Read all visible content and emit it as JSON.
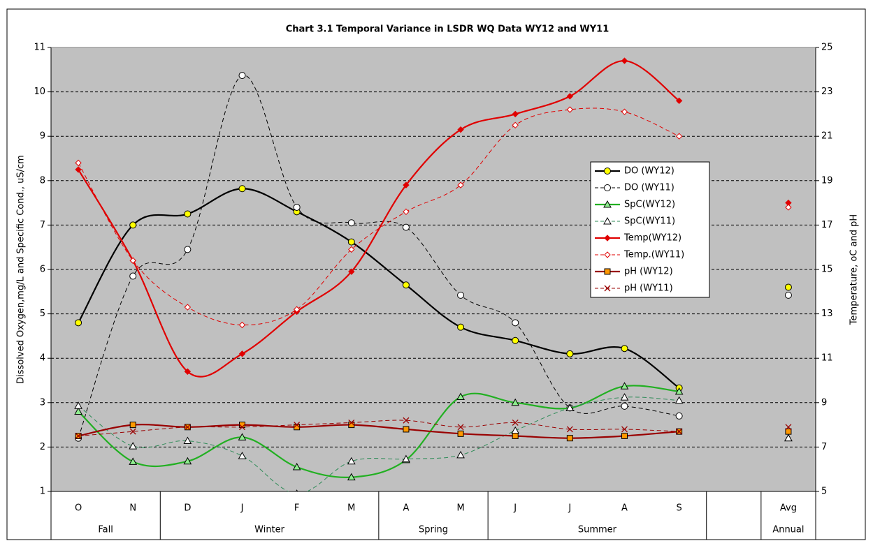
{
  "chart_data": {
    "type": "line",
    "title": "Chart 3.1  Temporal Variance in LSDR WQ Data WY12 and WY11",
    "y_label": "Dissolved Oxygen,mg/L and Specific Cond., uS/cm",
    "y2_label": "Temperature, oC and pH",
    "categories": [
      "O",
      "N",
      "D",
      "J",
      "F",
      "M",
      "A",
      "M",
      "J",
      "J",
      "A",
      "S",
      null,
      "Avg"
    ],
    "category_groups": [
      "Fall",
      "Fall",
      "Winter",
      "Winter",
      "Winter",
      "Winter",
      "Spring",
      "Spring",
      "Summer",
      "Summer",
      "Summer",
      "Summer",
      null,
      "Annual"
    ],
    "ylim": [
      1,
      11
    ],
    "yticks": [
      1,
      2,
      3,
      4,
      5,
      6,
      7,
      8,
      9,
      10,
      11
    ],
    "y2lim": [
      5,
      25
    ],
    "y2ticks": [
      5,
      7,
      9,
      11,
      13,
      15,
      17,
      19,
      21,
      23,
      25
    ],
    "grid": true,
    "legend_position": "right",
    "plot_background": "#c0c0c0",
    "series": [
      {
        "name": "DO (WY12)",
        "color": "#000000",
        "marker": "circle",
        "marker_fill": "#ffff00",
        "dashed": false,
        "values": [
          4.8,
          7.0,
          7.25,
          7.82,
          7.3,
          6.62,
          5.65,
          4.7,
          4.4,
          4.1,
          4.22,
          3.33,
          null,
          5.6
        ]
      },
      {
        "name": "DO (WY11)",
        "color": "#000000",
        "marker": "circle",
        "marker_fill": "#ffffff",
        "dashed": true,
        "values": [
          2.2,
          5.85,
          6.45,
          10.37,
          7.4,
          7.05,
          6.95,
          5.42,
          4.8,
          2.88,
          2.92,
          2.7,
          null,
          5.42
        ]
      },
      {
        "name": "SpC(WY12)",
        "color": "#22b022",
        "marker": "triangle",
        "marker_fill": "#90ee90",
        "dashed": false,
        "values": [
          2.8,
          1.67,
          1.68,
          2.22,
          1.55,
          1.32,
          1.71,
          3.13,
          3.0,
          2.88,
          3.37,
          3.25,
          null,
          2.2
        ]
      },
      {
        "name": "SpC(WY11)",
        "color": "#2e8b57",
        "marker": "triangle",
        "marker_fill": "#ffffff",
        "dashed": true,
        "values": [
          2.93,
          2.02,
          2.14,
          1.8,
          0.95,
          1.68,
          1.73,
          1.82,
          2.37,
          2.88,
          3.12,
          3.05,
          null,
          2.2
        ]
      },
      {
        "name": "Temp(WY12)",
        "color": "#e00000",
        "marker": "diamond",
        "marker_fill": "#e00000",
        "dashed": false,
        "axis": "y2",
        "values": [
          19.5,
          15.4,
          10.4,
          11.2,
          13.1,
          14.9,
          18.8,
          21.3,
          22.0,
          22.8,
          24.4,
          22.6,
          null,
          18.0
        ]
      },
      {
        "name": "Temp.(WY11)",
        "color": "#e00000",
        "marker": "diamond",
        "marker_fill": "#ffffff",
        "dashed": true,
        "axis": "y2",
        "values": [
          19.8,
          15.4,
          13.3,
          12.5,
          13.2,
          15.9,
          17.6,
          18.8,
          21.5,
          22.2,
          22.1,
          21.0,
          null,
          17.8
        ]
      },
      {
        "name": "pH (WY12)",
        "color": "#990000",
        "marker": "square",
        "marker_fill": "#ff9900",
        "dashed": false,
        "axis": "y2",
        "values": [
          7.5,
          8.0,
          7.9,
          8.0,
          7.9,
          8.0,
          7.8,
          7.6,
          7.5,
          7.4,
          7.5,
          7.7,
          null,
          7.7
        ]
      },
      {
        "name": "pH (WY11)",
        "color": "#990000",
        "marker": "x",
        "marker_fill": "none",
        "dashed": true,
        "axis": "y2",
        "values": [
          7.5,
          7.7,
          7.9,
          7.9,
          8.0,
          8.1,
          8.2,
          7.9,
          8.1,
          7.8,
          7.8,
          7.7,
          null,
          7.9
        ]
      }
    ]
  }
}
